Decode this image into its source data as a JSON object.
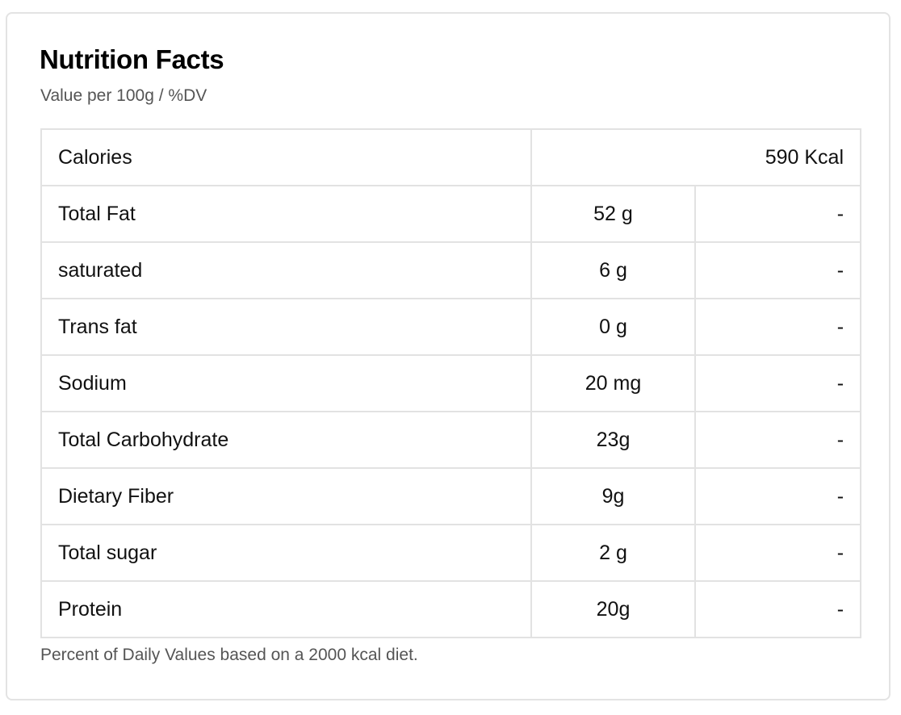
{
  "header": {
    "title": "Nutrition Facts",
    "subtitle": "Value per 100g / %DV"
  },
  "calories": {
    "label": "Calories",
    "value": "590 Kcal"
  },
  "nutrients": [
    {
      "name": "Total Fat",
      "amount": "52 g",
      "dv": "-"
    },
    {
      "name": "saturated",
      "amount": "6 g",
      "dv": "-"
    },
    {
      "name": "Trans fat",
      "amount": "0 g",
      "dv": "-"
    },
    {
      "name": "Sodium",
      "amount": "20 mg",
      "dv": "-"
    },
    {
      "name": "Total Carbohydrate",
      "amount": "23g",
      "dv": "-"
    },
    {
      "name": "Dietary Fiber",
      "amount": "9g",
      "dv": "-"
    },
    {
      "name": "Total sugar",
      "amount": "2 g",
      "dv": "-"
    },
    {
      "name": "Protein",
      "amount": "20g",
      "dv": "-"
    }
  ],
  "footnote": "Percent of Daily Values based on a 2000 kcal diet."
}
